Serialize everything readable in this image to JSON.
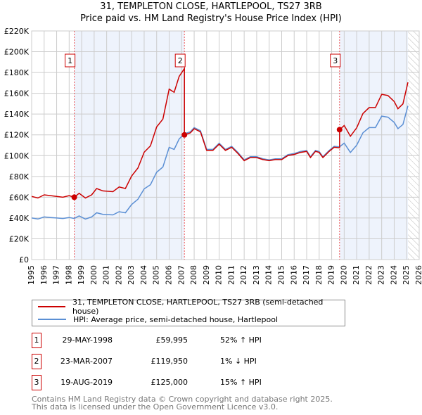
{
  "title": "31, TEMPLETON CLOSE, HARTLEPOOL, TS27 3RB",
  "subtitle": "Price paid vs. HM Land Registry's House Price Index (HPI)",
  "chart_data": {
    "type": "line",
    "xlim": [
      1995,
      2026
    ],
    "ylim": [
      0,
      220000
    ],
    "y_ticks": [
      0,
      20000,
      40000,
      60000,
      80000,
      100000,
      120000,
      140000,
      160000,
      180000,
      200000,
      220000
    ],
    "y_tick_labels": [
      "£0",
      "£20K",
      "£40K",
      "£60K",
      "£80K",
      "£100K",
      "£120K",
      "£140K",
      "£160K",
      "£180K",
      "£200K",
      "£220K"
    ],
    "x_ticks": [
      1995,
      1996,
      1997,
      1998,
      1999,
      2000,
      2001,
      2002,
      2003,
      2004,
      2005,
      2006,
      2007,
      2008,
      2009,
      2010,
      2011,
      2012,
      2013,
      2014,
      2015,
      2016,
      2017,
      2018,
      2019,
      2020,
      2021,
      2022,
      2023,
      2024,
      2025,
      2026
    ],
    "grid": true,
    "hatch_from": 2025.1,
    "colors": {
      "property": "#cc0000",
      "hpi": "#5b8fd4",
      "shade": "#eef3fc"
    },
    "hpi": [
      [
        1995,
        40000
      ],
      [
        1995.5,
        39000
      ],
      [
        1996,
        41000
      ],
      [
        1996.5,
        40500
      ],
      [
        1997,
        40000
      ],
      [
        1997.5,
        39500
      ],
      [
        1998,
        40500
      ],
      [
        1998.41,
        39500
      ],
      [
        1998.8,
        42000
      ],
      [
        1999.3,
        39000
      ],
      [
        1999.8,
        41000
      ],
      [
        2000.2,
        45000
      ],
      [
        2000.7,
        43500
      ],
      [
        2001.5,
        43000
      ],
      [
        2002,
        46000
      ],
      [
        2002.5,
        45000
      ],
      [
        2003,
        53000
      ],
      [
        2003.5,
        58000
      ],
      [
        2004,
        68000
      ],
      [
        2004.5,
        72000
      ],
      [
        2005,
        84000
      ],
      [
        2005.5,
        89000
      ],
      [
        2006,
        108000
      ],
      [
        2006.4,
        106000
      ],
      [
        2006.8,
        116000
      ],
      [
        2007.22,
        121000
      ],
      [
        2007.7,
        123000
      ],
      [
        2008,
        127000
      ],
      [
        2008.5,
        124000
      ],
      [
        2009,
        106000
      ],
      [
        2009.5,
        106000
      ],
      [
        2010,
        112000
      ],
      [
        2010.5,
        106000
      ],
      [
        2011,
        109000
      ],
      [
        2011.5,
        103000
      ],
      [
        2012,
        96000
      ],
      [
        2012.5,
        99000
      ],
      [
        2013,
        99000
      ],
      [
        2013.5,
        97000
      ],
      [
        2014,
        96000
      ],
      [
        2014.5,
        97000
      ],
      [
        2015,
        97000
      ],
      [
        2015.5,
        101000
      ],
      [
        2016,
        102000
      ],
      [
        2016.5,
        104000
      ],
      [
        2017,
        105000
      ],
      [
        2017.3,
        99000
      ],
      [
        2017.7,
        105000
      ],
      [
        2018,
        104000
      ],
      [
        2018.3,
        99000
      ],
      [
        2018.8,
        105000
      ],
      [
        2019.2,
        109000
      ],
      [
        2019.63,
        108500
      ],
      [
        2020,
        112000
      ],
      [
        2020.5,
        103000
      ],
      [
        2021,
        110000
      ],
      [
        2021.5,
        122000
      ],
      [
        2022,
        127000
      ],
      [
        2022.5,
        127000
      ],
      [
        2023,
        138000
      ],
      [
        2023.5,
        137000
      ],
      [
        2024,
        132000
      ],
      [
        2024.3,
        126000
      ],
      [
        2024.7,
        130000
      ],
      [
        2025.1,
        148000
      ]
    ],
    "sales": [
      {
        "n": "1",
        "x": 1998.41,
        "date": "29-MAY-1998",
        "price": 59995,
        "price_label": "£59,995",
        "hpi_diff": "52% ↑ HPI"
      },
      {
        "n": "2",
        "x": 2007.22,
        "date": "23-MAR-2007",
        "price": 119950,
        "price_label": "£119,950",
        "hpi_diff": "1% ↓ HPI"
      },
      {
        "n": "3",
        "x": 2019.63,
        "date": "19-AUG-2019",
        "price": 125000,
        "price_label": "£125,000",
        "hpi_diff": "15% ↑ HPI"
      }
    ],
    "legend": [
      {
        "label": "31, TEMPLETON CLOSE, HARTLEPOOL, TS27 3RB (semi-detached house)"
      },
      {
        "label": "HPI: Average price, semi-detached house, Hartlepool"
      }
    ]
  },
  "footer": {
    "line1": "Contains HM Land Registry data © Crown copyright and database right 2025.",
    "line2": "This data is licensed under the Open Government Licence v3.0."
  }
}
